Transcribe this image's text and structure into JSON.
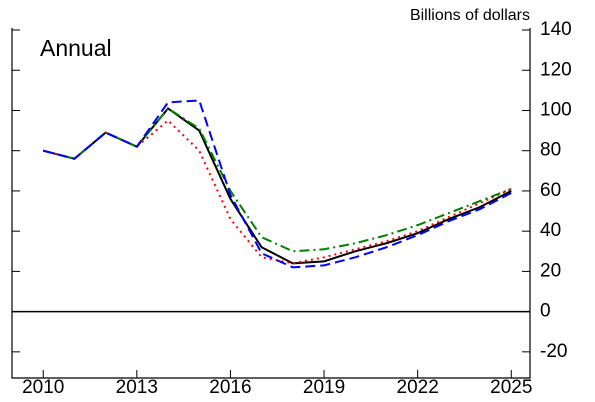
{
  "chart_data": {
    "type": "line",
    "annotation": "Annual",
    "y_axis_label": "Billions of dollars",
    "x": [
      2010,
      2011,
      2012,
      2013,
      2014,
      2015,
      2016,
      2017,
      2018,
      2019,
      2020,
      2021,
      2022,
      2023,
      2024,
      2025
    ],
    "series": [
      {
        "color": "#000000",
        "dash": "solid",
        "values": [
          80,
          76,
          89,
          82,
          101,
          90,
          56,
          32,
          24,
          25,
          30,
          34,
          39,
          46,
          52,
          60
        ]
      },
      {
        "color": "#ff0000",
        "dash": "dotted",
        "values": [
          80,
          76,
          89,
          82,
          95,
          80,
          46,
          27,
          24,
          27,
          31,
          35,
          40,
          47,
          54,
          61
        ]
      },
      {
        "color": "#008000",
        "dash": "dashdot",
        "values": [
          80,
          76,
          89,
          82,
          101,
          91,
          60,
          37,
          30,
          31,
          34,
          38,
          43,
          49,
          55,
          61
        ]
      },
      {
        "color": "#0000ff",
        "dash": "dashed",
        "values": [
          80,
          76,
          89,
          82,
          104,
          105,
          58,
          29,
          22,
          23,
          27,
          32,
          38,
          45,
          51,
          59
        ]
      }
    ],
    "xlim": [
      2009,
      2025.6
    ],
    "xticks": [
      2010,
      2013,
      2016,
      2019,
      2022,
      2025
    ],
    "ylim": [
      -33,
      141
    ],
    "yticks": [
      -20,
      0,
      20,
      40,
      60,
      80,
      100,
      120,
      140
    ]
  }
}
